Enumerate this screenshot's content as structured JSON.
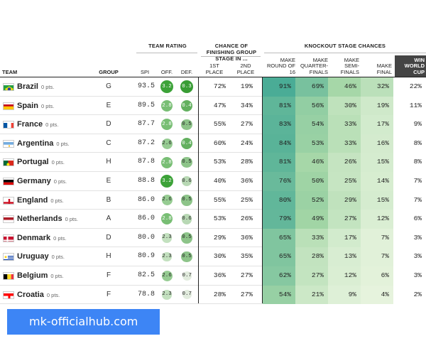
{
  "headers": {
    "team": "TEAM",
    "group": "GROUP",
    "team_rating": "TEAM RATING",
    "spi": "SPI",
    "off": "OFF.",
    "def": "DEF.",
    "finish_group_title": "CHANCE OF FINISHING GROUP STAGE IN ...",
    "first_place": "1ST PLACE",
    "second_place": "2ND PLACE",
    "knockout_title": "KNOCKOUT STAGE CHANCES",
    "r16": "MAKE ROUND OF 16",
    "qf": "MAKE QUARTER-FINALS",
    "sf": "MAKE SEMI-FINALS",
    "final": "MAKE FINAL",
    "win": "WIN WORLD CUP"
  },
  "points_label": "0 pts.",
  "footer_text": "mk-officialhub.com",
  "teams": [
    {
      "name": "Brazil",
      "flag": "brazil",
      "group": "G",
      "spi": "93.5",
      "off": "3.2",
      "def": "0.3",
      "first": "72%",
      "second": "19%",
      "r16": "91%",
      "qf": "69%",
      "sf": "46%",
      "final": "32%",
      "win": "22%"
    },
    {
      "name": "Spain",
      "flag": "spain",
      "group": "E",
      "spi": "89.5",
      "off": "2.8",
      "def": "0.4",
      "first": "47%",
      "second": "34%",
      "r16": "81%",
      "qf": "56%",
      "sf": "30%",
      "final": "19%",
      "win": "11%"
    },
    {
      "name": "France",
      "flag": "france",
      "group": "D",
      "spi": "87.7",
      "off": "2.8",
      "def": "0.5",
      "first": "55%",
      "second": "27%",
      "r16": "83%",
      "qf": "54%",
      "sf": "33%",
      "final": "17%",
      "win": "9%"
    },
    {
      "name": "Argentina",
      "flag": "argentina",
      "group": "C",
      "spi": "87.2",
      "off": "2.6",
      "def": "0.4",
      "first": "60%",
      "second": "24%",
      "r16": "84%",
      "qf": "53%",
      "sf": "33%",
      "final": "16%",
      "win": "8%"
    },
    {
      "name": "Portugal",
      "flag": "portugal",
      "group": "H",
      "spi": "87.8",
      "off": "2.8",
      "def": "0.5",
      "first": "53%",
      "second": "28%",
      "r16": "81%",
      "qf": "46%",
      "sf": "26%",
      "final": "15%",
      "win": "8%"
    },
    {
      "name": "Germany",
      "flag": "germany",
      "group": "E",
      "spi": "88.8",
      "off": "3.2",
      "def": "0.6",
      "first": "40%",
      "second": "36%",
      "r16": "76%",
      "qf": "50%",
      "sf": "25%",
      "final": "14%",
      "win": "7%"
    },
    {
      "name": "England",
      "flag": "england",
      "group": "B",
      "spi": "86.0",
      "off": "2.6",
      "def": "0.5",
      "first": "55%",
      "second": "25%",
      "r16": "80%",
      "qf": "52%",
      "sf": "29%",
      "final": "15%",
      "win": "7%"
    },
    {
      "name": "Netherlands",
      "flag": "netherlands",
      "group": "A",
      "spi": "86.0",
      "off": "2.8",
      "def": "0.6",
      "first": "53%",
      "second": "26%",
      "r16": "79%",
      "qf": "49%",
      "sf": "27%",
      "final": "12%",
      "win": "6%"
    },
    {
      "name": "Denmark",
      "flag": "denmark",
      "group": "D",
      "spi": "80.0",
      "off": "2.3",
      "def": "0.5",
      "first": "29%",
      "second": "36%",
      "r16": "65%",
      "qf": "33%",
      "sf": "17%",
      "final": "7%",
      "win": "3%"
    },
    {
      "name": "Uruguay",
      "flag": "uruguay",
      "group": "H",
      "spi": "80.9",
      "off": "2.3",
      "def": "0.5",
      "first": "30%",
      "second": "35%",
      "r16": "65%",
      "qf": "28%",
      "sf": "13%",
      "final": "7%",
      "win": "3%"
    },
    {
      "name": "Belgium",
      "flag": "belgium",
      "group": "F",
      "spi": "82.5",
      "off": "2.6",
      "def": "0.7",
      "first": "36%",
      "second": "27%",
      "r16": "62%",
      "qf": "27%",
      "sf": "12%",
      "final": "6%",
      "win": "3%"
    },
    {
      "name": "Croatia",
      "flag": "croatia",
      "group": "F",
      "spi": "78.8",
      "off": "2.3",
      "def": "0.7",
      "first": "28%",
      "second": "27%",
      "r16": "54%",
      "qf": "21%",
      "sf": "9%",
      "final": "4%",
      "win": "2%"
    }
  ]
}
